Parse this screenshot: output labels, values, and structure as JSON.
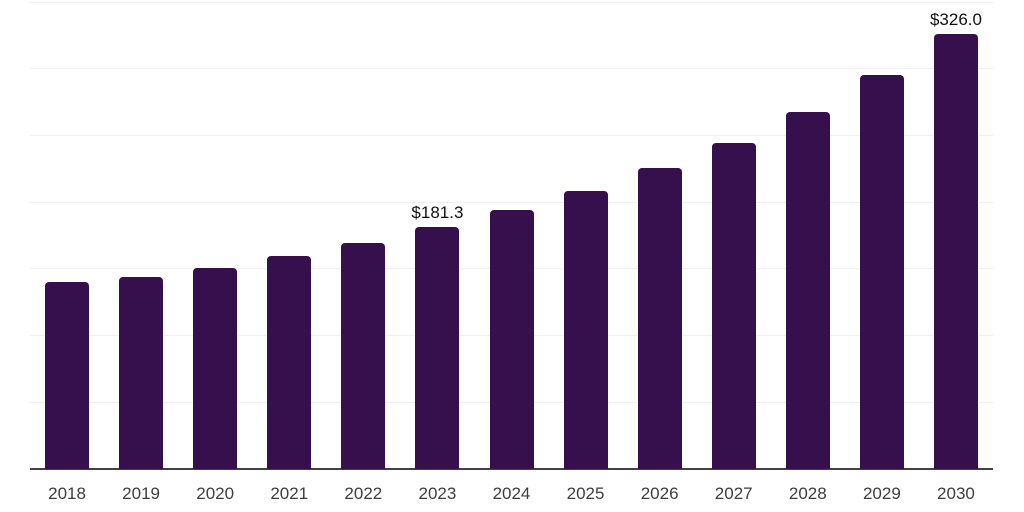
{
  "chart_data": {
    "type": "bar",
    "title": "",
    "xlabel": "",
    "ylabel": "",
    "categories": [
      "2018",
      "2019",
      "2020",
      "2021",
      "2022",
      "2023",
      "2024",
      "2025",
      "2026",
      "2027",
      "2028",
      "2029",
      "2030"
    ],
    "values": [
      139.9,
      143.9,
      151.0,
      160.0,
      169.4,
      181.3,
      194.2,
      208.0,
      225.7,
      244.2,
      267.9,
      295.0,
      326.0
    ],
    "data_labels": [
      {
        "category": "2023",
        "text": "$181.3"
      },
      {
        "category": "2030",
        "text": "$326.0"
      }
    ],
    "ylim": [
      0,
      350
    ],
    "gridline_step": 50,
    "grid": true,
    "legend": false,
    "y_tick_labels_shown": false,
    "bar_color": "#36104D",
    "axis_color": "#424242",
    "gridline_color": "#f0f0f0",
    "data_label_color": "#111111",
    "x_label_color": "#3d3d3d",
    "background_color": "#ffffff"
  }
}
